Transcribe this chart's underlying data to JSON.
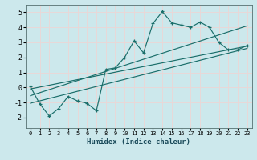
{
  "xlabel": "Humidex (Indice chaleur)",
  "bg_color": "#cce8ec",
  "grid_color": "#e8d8d8",
  "line_color": "#1a6e6a",
  "xlim": [
    -0.5,
    23.5
  ],
  "ylim": [
    -2.7,
    5.5
  ],
  "xticks": [
    0,
    1,
    2,
    3,
    4,
    5,
    6,
    7,
    8,
    9,
    10,
    11,
    12,
    13,
    14,
    15,
    16,
    17,
    18,
    19,
    20,
    21,
    22,
    23
  ],
  "yticks": [
    -2,
    -1,
    0,
    1,
    2,
    3,
    4,
    5
  ],
  "curve1_x": [
    0,
    1,
    2,
    3,
    4,
    5,
    6,
    7,
    8,
    9,
    10,
    11,
    12,
    13,
    14,
    15,
    16,
    17,
    18,
    19,
    20,
    21,
    22,
    23
  ],
  "curve1_y": [
    0.05,
    -1.1,
    -1.9,
    -1.4,
    -0.6,
    -0.9,
    -1.05,
    -1.55,
    1.2,
    1.3,
    2.0,
    3.1,
    2.3,
    4.25,
    5.05,
    4.3,
    4.15,
    4.0,
    4.35,
    4.0,
    3.0,
    2.5,
    2.5,
    2.8
  ],
  "line2_x": [
    0,
    23
  ],
  "line2_y": [
    -0.1,
    2.75
  ],
  "line3_x": [
    0,
    23
  ],
  "line3_y": [
    -0.55,
    4.1
  ],
  "line4_x": [
    0,
    23
  ],
  "line4_y": [
    -1.05,
    2.6
  ]
}
